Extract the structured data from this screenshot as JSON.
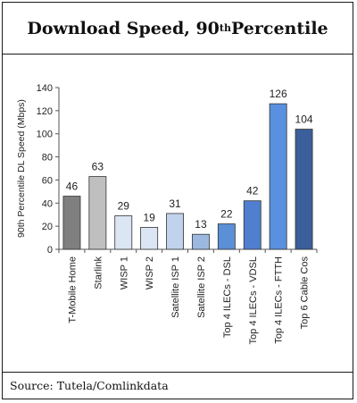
{
  "title": {
    "main": "Download Speed, 90",
    "sup": "th",
    "rest": " Percentile"
  },
  "source": "Source: Tutela/Comlinkdata",
  "chart_data": {
    "type": "bar",
    "ylabel": "90th Percentile DL Speed (Mbps)",
    "xlabel": "",
    "ylim": [
      0,
      140
    ],
    "yticks": [
      0,
      20,
      40,
      60,
      80,
      100,
      120,
      140
    ],
    "grid": false,
    "categories": [
      "T-Mobile Home",
      "Starlink",
      "WISP 1",
      "WISP 2",
      "Satellite ISP 1",
      "Satellite ISP 2",
      "Top 4 ILECs - DSL",
      "Top 4 ILECs - VDSL",
      "Top 4 ILECs - FTTH",
      "Top 6 Cable Cos"
    ],
    "values": [
      46,
      63,
      29,
      19,
      31,
      13,
      22,
      42,
      126,
      104
    ],
    "colors": [
      "#7f7f7f",
      "#bfbfbf",
      "#dbe5f4",
      "#dbe5f4",
      "#c0d2ec",
      "#9db8e0",
      "#5b8fd6",
      "#4f7fce",
      "#5a90e0",
      "#3a5f9a"
    ]
  }
}
